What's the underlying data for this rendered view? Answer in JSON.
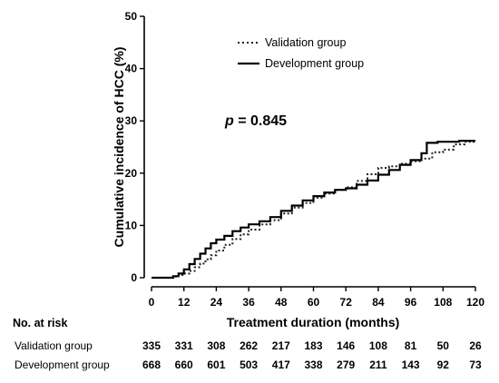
{
  "chart_data": {
    "type": "line",
    "title": "",
    "xlabel": "Treatment duration (months)",
    "ylabel": "Cumulative incidence of HCC (%)",
    "xlim": [
      0,
      120
    ],
    "ylim": [
      0,
      50
    ],
    "xticks": [
      "0",
      "12",
      "24",
      "36",
      "48",
      "60",
      "72",
      "84",
      "96",
      "108",
      "120"
    ],
    "yticks": [
      "0",
      "10",
      "20",
      "30",
      "40",
      "50"
    ],
    "grid": false,
    "legend_position": "top-right",
    "annotation": {
      "italic": "p",
      "text": " = 0.845"
    },
    "series": [
      {
        "name": "Validation group",
        "style": "dotted",
        "color": "#222222",
        "x": [
          0,
          5,
          8,
          10,
          12,
          14,
          16,
          18,
          20,
          22,
          24,
          27,
          30,
          33,
          36,
          40,
          44,
          48,
          52,
          56,
          60,
          64,
          68,
          72,
          76,
          80,
          84,
          88,
          92,
          96,
          100,
          104,
          108,
          112,
          116,
          120
        ],
        "y": [
          0,
          0,
          0.2,
          0.5,
          0.8,
          1.3,
          2.0,
          2.7,
          3.5,
          4.3,
          5.2,
          6.3,
          7.4,
          8.3,
          9.2,
          10.2,
          11.0,
          12.3,
          13.4,
          14.3,
          15.3,
          16.1,
          16.8,
          17.3,
          18.5,
          19.8,
          21.0,
          21.3,
          21.8,
          22.3,
          22.8,
          24.0,
          24.5,
          25.5,
          26.0,
          26.2
        ]
      },
      {
        "name": "Development group",
        "style": "solid",
        "color": "#000000",
        "x": [
          0,
          5,
          8,
          10,
          12,
          14,
          16,
          18,
          20,
          22,
          24,
          27,
          30,
          33,
          36,
          40,
          44,
          48,
          52,
          56,
          60,
          64,
          68,
          72,
          76,
          80,
          84,
          88,
          92,
          96,
          100,
          102,
          106,
          110,
          114,
          120
        ],
        "y": [
          0,
          0,
          0.3,
          0.8,
          1.6,
          2.6,
          3.6,
          4.6,
          5.6,
          6.6,
          7.3,
          8.0,
          8.9,
          9.6,
          10.2,
          10.8,
          11.6,
          12.8,
          13.8,
          14.8,
          15.6,
          16.3,
          16.8,
          17.1,
          17.8,
          18.6,
          19.7,
          20.6,
          21.6,
          22.5,
          23.8,
          25.8,
          26.0,
          26.0,
          26.2,
          26.2
        ]
      }
    ]
  },
  "risk_table": {
    "header": "No. at risk",
    "rows": [
      {
        "label": "Validation group",
        "values": [
          "335",
          "331",
          "308",
          "262",
          "217",
          "183",
          "146",
          "108",
          "81",
          "50",
          "26"
        ]
      },
      {
        "label": "Development group",
        "values": [
          "668",
          "660",
          "601",
          "503",
          "417",
          "338",
          "279",
          "211",
          "143",
          "92",
          "73"
        ]
      }
    ]
  }
}
